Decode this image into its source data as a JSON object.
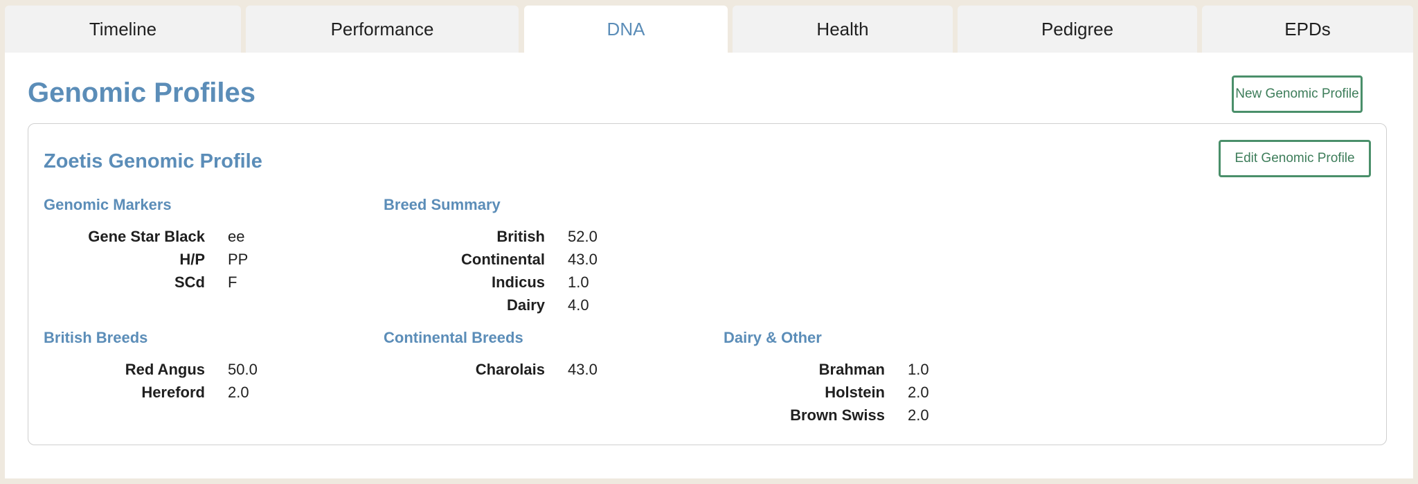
{
  "tabs": [
    {
      "label": "Timeline"
    },
    {
      "label": "Performance"
    },
    {
      "label": "DNA"
    },
    {
      "label": "Health"
    },
    {
      "label": "Pedigree"
    },
    {
      "label": "EPDs"
    }
  ],
  "page": {
    "title": "Genomic Profiles",
    "new_button": "New Genomic Profile"
  },
  "profile": {
    "title": "Zoetis Genomic Profile",
    "edit_button": "Edit Genomic Profile",
    "genomic_markers": {
      "title": "Genomic Markers",
      "rows": [
        {
          "label": "Gene Star Black",
          "value": "ee"
        },
        {
          "label": "H/P",
          "value": "PP"
        },
        {
          "label": "SCd",
          "value": "F"
        }
      ]
    },
    "breed_summary": {
      "title": "Breed Summary",
      "rows": [
        {
          "label": "British",
          "value": "52.0"
        },
        {
          "label": "Continental",
          "value": "43.0"
        },
        {
          "label": "Indicus",
          "value": "1.0"
        },
        {
          "label": "Dairy",
          "value": "4.0"
        }
      ]
    },
    "british_breeds": {
      "title": "British Breeds",
      "rows": [
        {
          "label": "Red Angus",
          "value": "50.0"
        },
        {
          "label": "Hereford",
          "value": "2.0"
        }
      ]
    },
    "continental_breeds": {
      "title": "Continental Breeds",
      "rows": [
        {
          "label": "Charolais",
          "value": "43.0"
        }
      ]
    },
    "dairy_other": {
      "title": "Dairy & Other",
      "rows": [
        {
          "label": "Brahman",
          "value": "1.0"
        },
        {
          "label": "Holstein",
          "value": "2.0"
        },
        {
          "label": "Brown Swiss",
          "value": "2.0"
        }
      ]
    }
  },
  "colors": {
    "accent": "#5b8db8",
    "button_border": "#4a8f6a",
    "background": "#efe9df",
    "tab_inactive": "#f2f2f2"
  }
}
